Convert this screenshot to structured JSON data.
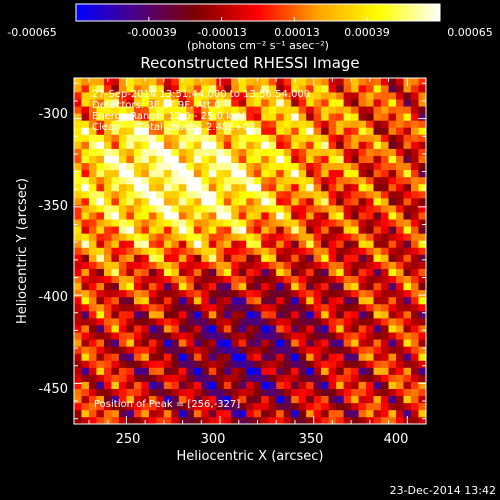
{
  "chart_data": {
    "type": "heatmap",
    "title": "Reconstructed RHESSI Image",
    "xlabel": "Heliocentric X (arcsec)",
    "ylabel": "Heliocentric Y (arcsec)",
    "xlim": [
      222,
      410
    ],
    "ylim": [
      -473,
      -277
    ],
    "x_ticks": [
      "250",
      "300",
      "350",
      "400"
    ],
    "y_ticks": [
      "-300",
      "-350",
      "-400",
      "-450"
    ],
    "colorbar": {
      "ticks": [
        "-0.00065",
        "-0.00039",
        "-0.00013",
        "0.00013",
        "0.00039",
        "0.00065"
      ],
      "units_label": "(photons cm⁻² s⁻¹ asec⁻²)",
      "vmin": -0.00065,
      "vmax": 0.00065,
      "colors": [
        "#0000ff",
        "#4b0082",
        "#800000",
        "#ff0000",
        "#ffa500",
        "#ffff00",
        "#ffffff"
      ]
    },
    "info_lines": [
      "27-Sep-2014 13:51:44.000 to 13:56:54.000",
      "Detectors: 3F 6F 9F, Att 0",
      "Energy Range: 12.0 - 25.0 keV",
      "Clean      Total counts: 2.48E+03"
    ],
    "peak_text": "Position of Peak = [256,-327]",
    "peak_position": [
      256,
      -327
    ],
    "timestamp": "23-Dec-2014 13:42"
  }
}
